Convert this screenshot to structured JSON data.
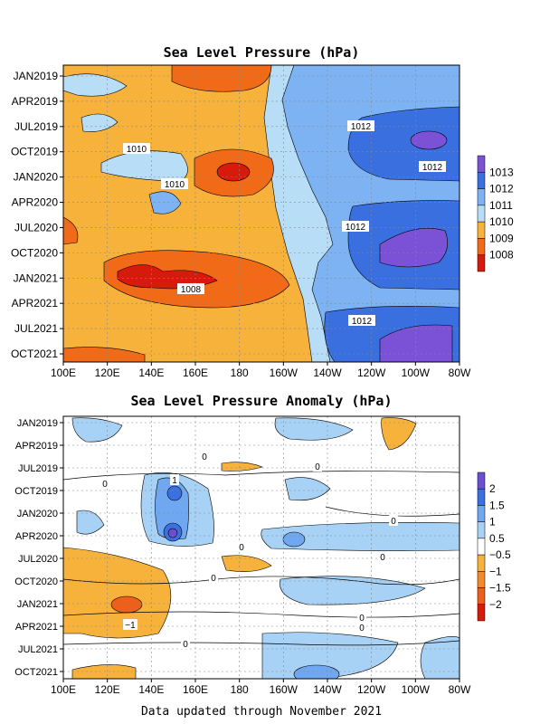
{
  "chart_data": [
    {
      "type": "heatmap",
      "title": "Sea Level Pressure (hPa)",
      "x_ticks": [
        "100E",
        "120E",
        "140E",
        "160E",
        "180",
        "160W",
        "140W",
        "120W",
        "100W",
        "80W"
      ],
      "y_ticks": [
        "JAN2019",
        "APR2019",
        "JUL2019",
        "OCT2019",
        "JAN2020",
        "APR2020",
        "JUL2020",
        "OCT2020",
        "JAN2021",
        "APR2021",
        "JUL2021",
        "OCT2021"
      ],
      "legend": {
        "levels": [
          "1013",
          "1012",
          "1011",
          "1010",
          "1009",
          "1008"
        ],
        "colors": [
          "#7B52D6",
          "#3A6FE0",
          "#7DB3F2",
          "#B7DDF7",
          "#F7B23C",
          "#F06A18",
          "#D61A0B"
        ]
      },
      "contour_labels": [
        "1012",
        "1012",
        "1010",
        "1010",
        "1012",
        "1008",
        "1012"
      ],
      "grid": true
    },
    {
      "type": "heatmap",
      "title": "Sea Level Pressure Anomaly (hPa)",
      "x_ticks": [
        "100E",
        "120E",
        "140E",
        "160E",
        "180",
        "160W",
        "140W",
        "120W",
        "100W",
        "80W"
      ],
      "y_ticks": [
        "JAN2019",
        "APR2019",
        "JUL2019",
        "OCT2019",
        "JAN2020",
        "APR2020",
        "JUL2020",
        "OCT2020",
        "JAN2021",
        "APR2021",
        "JUL2021",
        "OCT2021"
      ],
      "legend": {
        "levels": [
          "2",
          "1.5",
          "1",
          "0.5",
          "−0.5",
          "−1",
          "−1.5",
          "−2"
        ],
        "colors": [
          "#6A4FD0",
          "#3C6FE0",
          "#6FA8F0",
          "#A8D2F5",
          "#FFFFFF",
          "#F7B23C",
          "#F28A2A",
          "#EE5F1A",
          "#D61A0B"
        ]
      },
      "contour_labels": [
        "0",
        "0",
        "0",
        "1",
        "0",
        "0",
        "0",
        "0",
        "−1",
        "0",
        "0",
        "0"
      ],
      "grid": true
    }
  ],
  "footer": "Data updated through November 2021"
}
